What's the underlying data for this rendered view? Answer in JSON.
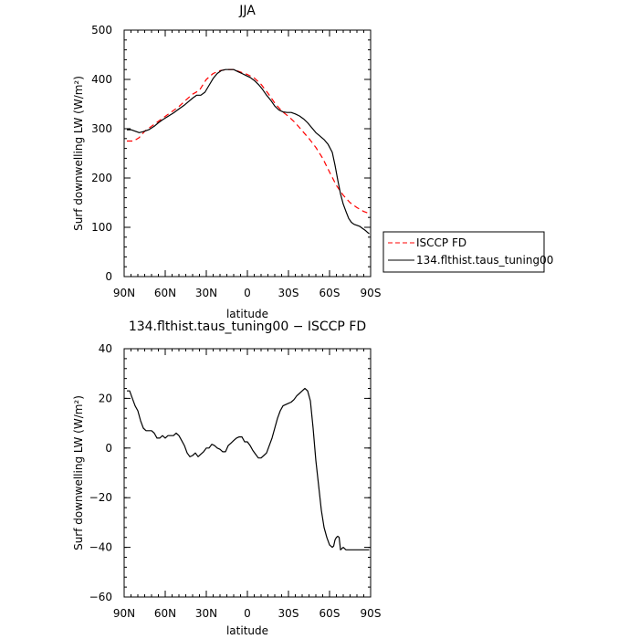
{
  "chart_data": [
    {
      "type": "line",
      "title": "JJA",
      "xlabel": "latitude",
      "ylabel": "Surf downwelling LW (W/m²)",
      "xlim": [
        90,
        -90
      ],
      "ylim": [
        0,
        500
      ],
      "xticks": [
        90,
        60,
        30,
        0,
        -30,
        -60,
        -90
      ],
      "xtick_labels": [
        "90N",
        "60N",
        "30N",
        "0",
        "30S",
        "60S",
        "90S"
      ],
      "yticks": [
        0,
        100,
        200,
        300,
        400,
        500
      ],
      "ytick_labels": [
        "0",
        "100",
        "200",
        "300",
        "400",
        "500"
      ],
      "legend_position": "right",
      "series": [
        {
          "name": "ISCCP FD",
          "color": "#ff0000",
          "dash": "dashed",
          "x": [
            88,
            83,
            79,
            75,
            70,
            65,
            60,
            55,
            50,
            45,
            40,
            35,
            30,
            25,
            20,
            15,
            10,
            5,
            0,
            -5,
            -10,
            -15,
            -20,
            -25,
            -30,
            -35,
            -40,
            -45,
            -50,
            -55,
            -60,
            -65,
            -70,
            -75,
            -80,
            -85,
            -89
          ],
          "y": [
            275,
            275,
            282,
            295,
            305,
            315,
            325,
            335,
            345,
            358,
            370,
            378,
            400,
            412,
            418,
            420,
            420,
            415,
            410,
            403,
            390,
            372,
            352,
            336,
            325,
            312,
            296,
            280,
            262,
            240,
            212,
            185,
            165,
            150,
            140,
            132,
            128
          ]
        },
        {
          "name": "134.flthist.taus_tuning00",
          "color": "#000000",
          "dash": "solid",
          "x": [
            88,
            85,
            82,
            79,
            76,
            72,
            68,
            65,
            62,
            58,
            54,
            50,
            46,
            43,
            40,
            37,
            34,
            31,
            28,
            25,
            22,
            19,
            16,
            13,
            10,
            7,
            4,
            1,
            -2,
            -5,
            -8,
            -11,
            -14,
            -17,
            -20,
            -23,
            -26,
            -29,
            -32,
            -35,
            -38,
            -41,
            -44,
            -47,
            -50,
            -53,
            -56,
            -59,
            -62,
            -64,
            -66,
            -68,
            -70,
            -72,
            -74,
            -76,
            -78,
            -80,
            -82,
            -84,
            -86,
            -88,
            -89
          ],
          "y": [
            298,
            298,
            295,
            292,
            294,
            298,
            305,
            312,
            318,
            325,
            332,
            340,
            348,
            355,
            362,
            368,
            368,
            374,
            388,
            402,
            412,
            418,
            420,
            420,
            420,
            416,
            412,
            408,
            404,
            398,
            390,
            380,
            368,
            358,
            346,
            338,
            334,
            333,
            333,
            330,
            326,
            320,
            312,
            302,
            292,
            285,
            278,
            268,
            252,
            226,
            196,
            168,
            147,
            132,
            118,
            110,
            106,
            104,
            102,
            98,
            94,
            89,
            87
          ]
        }
      ]
    },
    {
      "type": "line",
      "title": "134.flthist.taus_tuning00 − ISCCP FD",
      "xlabel": "latitude",
      "ylabel": "Surf downwelling LW (W/m²)",
      "xlim": [
        90,
        -90
      ],
      "ylim": [
        -60,
        40
      ],
      "xticks": [
        90,
        60,
        30,
        0,
        -30,
        -60,
        -90
      ],
      "xtick_labels": [
        "90N",
        "60N",
        "30N",
        "0",
        "30S",
        "60S",
        "90S"
      ],
      "yticks": [
        -60,
        -40,
        -20,
        0,
        20,
        40
      ],
      "ytick_labels": [
        "−60",
        "−40",
        "−20",
        "0",
        "20",
        "40"
      ],
      "series": [
        {
          "color": "#000000",
          "dash": "solid",
          "x": [
            88,
            86,
            84,
            82,
            80,
            78,
            76,
            74,
            72,
            70,
            68,
            66,
            64,
            62,
            60,
            58,
            56,
            54,
            52,
            50,
            48,
            46,
            44,
            42,
            40,
            38,
            36,
            34,
            32,
            30,
            28,
            26,
            24,
            22,
            20,
            18,
            16,
            14,
            12,
            10,
            8,
            6,
            4,
            2,
            0,
            -2,
            -4,
            -6,
            -8,
            -10,
            -12,
            -14,
            -16,
            -18,
            -20,
            -22,
            -24,
            -26,
            -28,
            -30,
            -32,
            -34,
            -36,
            -38,
            -40,
            -42,
            -44,
            -46,
            -48,
            -50,
            -52,
            -54,
            -56,
            -58,
            -60,
            -62,
            -63,
            -64,
            -65,
            -66,
            -67,
            -68,
            -70,
            -72,
            -74,
            -76,
            -78,
            -80,
            -82,
            -84,
            -86,
            -88,
            -89
          ],
          "y": [
            23,
            23,
            20,
            17,
            15,
            11,
            8,
            7,
            7,
            7,
            6,
            4,
            4,
            5,
            4,
            5,
            5,
            5,
            6,
            5,
            3,
            1,
            -2,
            -3.5,
            -3,
            -2,
            -3.5,
            -2.5,
            -1.5,
            0,
            0,
            1.5,
            1,
            0,
            -0.5,
            -1.5,
            -1.5,
            1,
            2,
            3,
            4,
            4.5,
            4.5,
            2.5,
            2.5,
            1,
            -1,
            -2.5,
            -4,
            -4,
            -3,
            -2,
            1,
            4,
            8,
            12,
            15,
            17,
            17.5,
            18,
            18.5,
            19.5,
            21,
            22,
            23,
            24,
            23,
            19,
            8,
            -5,
            -15,
            -25,
            -32,
            -36,
            -39,
            -40,
            -39.5,
            -37,
            -36,
            -35.5,
            -36,
            -41,
            -40,
            -41,
            -41,
            -41,
            -41,
            -41,
            -41,
            -41,
            -41,
            -41,
            -41
          ],
          "_note": ""
        }
      ]
    }
  ]
}
